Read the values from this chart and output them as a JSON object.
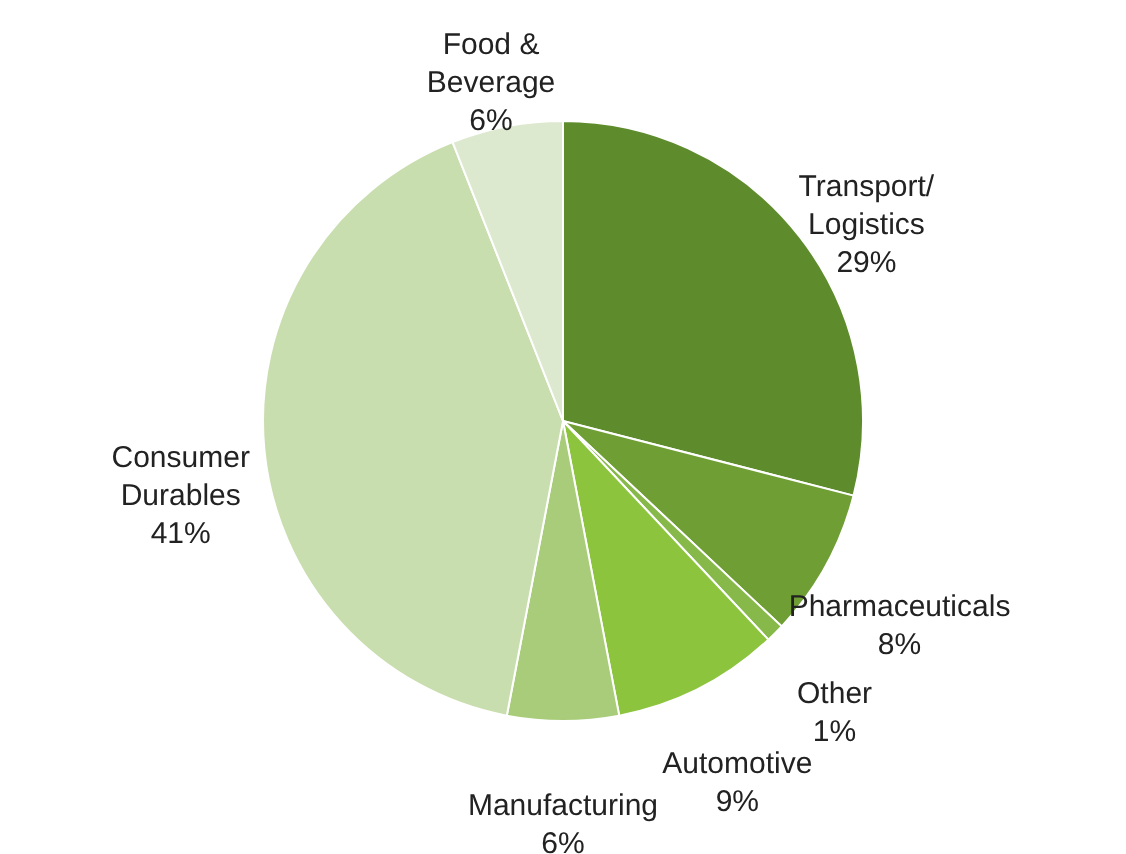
{
  "chart_data": {
    "type": "pie",
    "categories": [
      "Transport/\nLogistics",
      "Pharmaceuticals",
      "Other",
      "Automotive",
      "Manufacturing",
      "Consumer\nDurables",
      "Food &\nBeverage"
    ],
    "values": [
      29,
      8,
      1,
      9,
      6,
      41,
      6
    ],
    "value_labels": [
      "29%",
      "8%",
      "1%",
      "9%",
      "6%",
      "41%",
      "6%"
    ],
    "colors": [
      "#5e8c2c",
      "#6f9e34",
      "#86b84a",
      "#8cc43e",
      "#a9cc7a",
      "#c9deae",
      "#dde9cf"
    ],
    "legend": false
  }
}
